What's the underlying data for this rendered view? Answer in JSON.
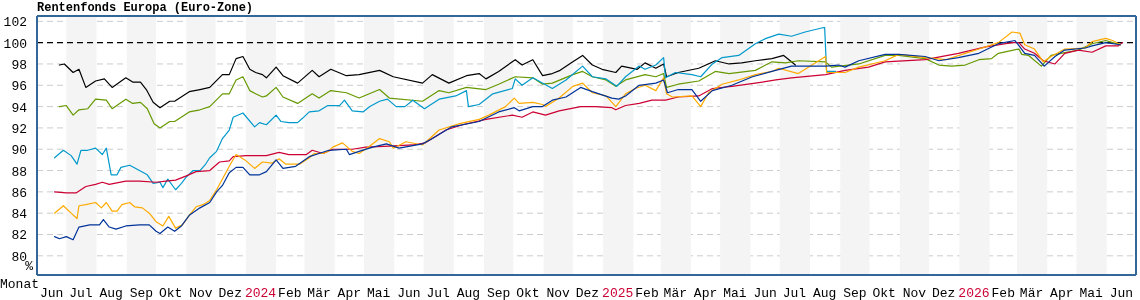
{
  "chart_data": {
    "type": "line",
    "title": "Rentenfonds Europa (Euro-Zone)",
    "xlabel": "Monat",
    "ylabel": "%",
    "xlim": [
      "2023-06-01",
      "2026-07-01"
    ],
    "ylim": [
      78.2,
      102.5
    ],
    "yticks": [
      80,
      82,
      84,
      86,
      88,
      90,
      92,
      94,
      96,
      98,
      100,
      102
    ],
    "xticks": [
      {
        "value": "2023-06-16",
        "label": "Jun"
      },
      {
        "value": "2023-07-16",
        "label": "Jul"
      },
      {
        "value": "2023-08-16",
        "label": "Aug"
      },
      {
        "value": "2023-09-16",
        "label": "Sep"
      },
      {
        "value": "2023-10-16",
        "label": "Okt"
      },
      {
        "value": "2023-11-16",
        "label": "Nov"
      },
      {
        "value": "2023-12-16",
        "label": "Dez"
      },
      {
        "value": "2024-01-16",
        "label": "2024"
      },
      {
        "value": "2024-02-15",
        "label": "Feb"
      },
      {
        "value": "2024-03-16",
        "label": "Mär"
      },
      {
        "value": "2024-04-16",
        "label": "Apr"
      },
      {
        "value": "2024-05-16",
        "label": "Mai"
      },
      {
        "value": "2024-06-16",
        "label": "Jun"
      },
      {
        "value": "2024-07-16",
        "label": "Jul"
      },
      {
        "value": "2024-08-16",
        "label": "Aug"
      },
      {
        "value": "2024-09-16",
        "label": "Sep"
      },
      {
        "value": "2024-10-16",
        "label": "Okt"
      },
      {
        "value": "2024-11-16",
        "label": "Nov"
      },
      {
        "value": "2024-12-16",
        "label": "Dez"
      },
      {
        "value": "2025-01-16",
        "label": "2025"
      },
      {
        "value": "2025-02-15",
        "label": "Feb"
      },
      {
        "value": "2025-03-16",
        "label": "Mär"
      },
      {
        "value": "2025-04-16",
        "label": "Apr"
      },
      {
        "value": "2025-05-16",
        "label": "Mai"
      },
      {
        "value": "2025-06-16",
        "label": "Jun"
      },
      {
        "value": "2025-07-16",
        "label": "Jul"
      },
      {
        "value": "2025-08-16",
        "label": "Aug"
      },
      {
        "value": "2025-09-16",
        "label": "Sep"
      },
      {
        "value": "2025-10-16",
        "label": "Okt"
      },
      {
        "value": "2025-11-16",
        "label": "Nov"
      },
      {
        "value": "2025-12-16",
        "label": "Dez"
      },
      {
        "value": "2026-01-16",
        "label": "2026"
      },
      {
        "value": "2026-02-15",
        "label": "Feb"
      },
      {
        "value": "2026-03-16",
        "label": "Mär"
      },
      {
        "value": "2026-04-16",
        "label": "Apr"
      },
      {
        "value": "2026-05-16",
        "label": "Mai"
      },
      {
        "value": "2026-06-16",
        "label": "Jun"
      }
    ],
    "grid": "y",
    "marker": "none",
    "line_style": "solid",
    "ref_lines": [
      {
        "axis": "y",
        "value": 100,
        "color": "#000000",
        "line_style": "dashed"
      }
    ],
    "bands": [
      {
        "axis": "x",
        "from": "2023-07-01",
        "to": "2023-08-01",
        "color": "#f4f4f4"
      },
      {
        "axis": "x",
        "from": "2023-09-01",
        "to": "2023-10-01",
        "color": "#f4f4f4"
      },
      {
        "axis": "x",
        "from": "2023-11-01",
        "to": "2023-12-01",
        "color": "#f4f4f4"
      },
      {
        "axis": "x",
        "from": "2024-01-01",
        "to": "2024-02-01",
        "color": "#f4f4f4"
      },
      {
        "axis": "x",
        "from": "2024-03-01",
        "to": "2024-04-01",
        "color": "#f4f4f4"
      },
      {
        "axis": "x",
        "from": "2024-05-01",
        "to": "2024-06-01",
        "color": "#f4f4f4"
      },
      {
        "axis": "x",
        "from": "2024-07-01",
        "to": "2024-08-01",
        "color": "#f4f4f4"
      },
      {
        "axis": "x",
        "from": "2024-09-01",
        "to": "2024-10-01",
        "color": "#f4f4f4"
      },
      {
        "axis": "x",
        "from": "2024-11-01",
        "to": "2024-12-01",
        "color": "#f4f4f4"
      },
      {
        "axis": "x",
        "from": "2025-01-01",
        "to": "2025-02-01",
        "color": "#f4f4f4"
      },
      {
        "axis": "x",
        "from": "2025-03-01",
        "to": "2025-04-01",
        "color": "#f4f4f4"
      },
      {
        "axis": "x",
        "from": "2025-05-01",
        "to": "2025-06-01",
        "color": "#f4f4f4"
      },
      {
        "axis": "x",
        "from": "2025-07-01",
        "to": "2025-08-01",
        "color": "#f4f4f4"
      },
      {
        "axis": "x",
        "from": "2025-09-01",
        "to": "2025-10-01",
        "color": "#f4f4f4"
      },
      {
        "axis": "x",
        "from": "2025-11-01",
        "to": "2025-12-01",
        "color": "#f4f4f4"
      },
      {
        "axis": "x",
        "from": "2026-01-01",
        "to": "2026-02-01",
        "color": "#f4f4f4"
      },
      {
        "axis": "x",
        "from": "2026-03-01",
        "to": "2026-04-01",
        "color": "#f4f4f4"
      },
      {
        "axis": "x",
        "from": "2026-05-01",
        "to": "2026-06-01",
        "color": "#f4f4f4"
      }
    ],
    "series": [
      {
        "color": "#000000",
        "x": [
          "2023-06-24",
          "2023-06-29",
          "2023-07-08",
          "2023-07-14",
          "2023-07-21",
          "2023-07-31",
          "2023-08-09",
          "2023-08-17",
          "2023-08-31",
          "2023-09-07",
          "2023-09-15",
          "2023-09-21",
          "2023-09-28",
          "2023-10-05",
          "2023-10-15",
          "2023-10-20",
          "2023-11-04",
          "2023-11-15",
          "2023-11-25",
          "2023-12-08",
          "2023-12-15",
          "2023-12-22",
          "2023-12-29",
          "2024-01-05",
          "2024-01-11",
          "2024-01-18",
          "2024-01-22",
          "2024-02-01",
          "2024-02-08",
          "2024-02-23",
          "2024-03-09",
          "2024-03-16",
          "2024-03-28",
          "2024-04-13",
          "2024-04-26",
          "2024-05-17",
          "2024-05-31",
          "2024-06-30",
          "2024-07-10",
          "2024-07-27",
          "2024-08-14",
          "2024-08-27",
          "2024-09-03",
          "2024-09-16",
          "2024-10-03",
          "2024-10-10",
          "2024-10-21",
          "2024-10-31",
          "2024-11-10",
          "2024-11-18",
          "2024-12-01",
          "2024-12-11",
          "2024-12-21",
          "2024-12-31",
          "2025-01-14",
          "2025-01-20",
          "2025-02-05",
          "2025-02-13",
          "2025-02-24",
          "2025-03-04",
          "2025-03-07",
          "2025-03-19",
          "2025-04-09",
          "2025-04-26",
          "2025-05-10",
          "2025-05-23",
          "2025-06-06",
          "2025-06-23",
          "2025-07-05",
          "2025-07-13",
          "2025-07-17"
        ],
        "values": [
          97.9,
          98.0,
          97.2,
          97.5,
          95.8,
          96.4,
          96.6,
          95.8,
          96.7,
          96.3,
          96.3,
          95.6,
          94.4,
          93.9,
          94.5,
          94.5,
          95.4,
          95.6,
          95.8,
          97.0,
          97.0,
          98.5,
          98.7,
          97.5,
          97.2,
          97.0,
          96.7,
          97.7,
          96.9,
          96.2,
          97.4,
          96.8,
          97.5,
          96.9,
          97.0,
          97.4,
          96.8,
          96.2,
          97.0,
          96.2,
          96.9,
          97.1,
          96.6,
          97.3,
          98.4,
          97.9,
          98.4,
          96.9,
          97.1,
          97.4,
          98.2,
          98.8,
          97.9,
          97.5,
          97.2,
          97.8,
          97.5,
          98.1,
          97.6,
          98.0,
          96.8,
          97.2,
          97.6,
          98.3,
          98.0,
          98.1,
          98.3,
          98.5,
          98.8,
          98.2,
          97.9
        ]
      },
      {
        "color": "#669900",
        "x": [
          "2023-06-24",
          "2023-07-01",
          "2023-07-08",
          "2023-07-14",
          "2023-07-23",
          "2023-07-31",
          "2023-08-11",
          "2023-08-17",
          "2023-08-31",
          "2023-09-07",
          "2023-09-15",
          "2023-09-22",
          "2023-09-29",
          "2023-10-05",
          "2023-10-15",
          "2023-10-20",
          "2023-11-04",
          "2023-11-15",
          "2023-11-25",
          "2023-12-08",
          "2023-12-15",
          "2023-12-22",
          "2023-12-29",
          "2024-01-05",
          "2024-01-11",
          "2024-01-18",
          "2024-01-22",
          "2024-02-01",
          "2024-02-08",
          "2024-02-23",
          "2024-03-09",
          "2024-03-16",
          "2024-03-28",
          "2024-04-13",
          "2024-04-26",
          "2024-05-17",
          "2024-05-27",
          "2024-06-30",
          "2024-07-17",
          "2024-07-27",
          "2024-08-14",
          "2024-09-03",
          "2024-09-16",
          "2024-10-03",
          "2024-10-21",
          "2024-10-31",
          "2024-11-10",
          "2024-12-01",
          "2024-12-11",
          "2024-12-21",
          "2025-01-04",
          "2025-01-14",
          "2025-01-24",
          "2025-02-13",
          "2025-02-24",
          "2025-03-04",
          "2025-03-07",
          "2025-03-19",
          "2025-04-09",
          "2025-04-26",
          "2025-05-10",
          "2025-06-06",
          "2025-06-23",
          "2025-07-07",
          "2025-07-20",
          "2025-08-17",
          "2025-08-23",
          "2025-09-20",
          "2025-10-17",
          "2025-10-31",
          "2025-11-27",
          "2025-12-11",
          "2025-12-24",
          "2026-01-07",
          "2026-01-21",
          "2026-02-03",
          "2026-02-10",
          "2026-03-03",
          "2026-03-06",
          "2026-03-13",
          "2026-03-26",
          "2026-04-05",
          "2026-04-15",
          "2026-05-03",
          "2026-05-17",
          "2026-05-31",
          "2026-06-07",
          "2026-06-15"
        ],
        "values": [
          94.0,
          94.1,
          93.2,
          93.7,
          93.8,
          94.7,
          94.6,
          93.8,
          94.7,
          94.3,
          94.4,
          93.8,
          92.4,
          92.0,
          92.6,
          92.6,
          93.5,
          93.7,
          94.0,
          95.2,
          95.2,
          96.5,
          96.8,
          95.5,
          95.2,
          94.9,
          95.0,
          95.8,
          94.9,
          94.3,
          95.2,
          94.8,
          95.5,
          95.3,
          94.8,
          95.6,
          94.8,
          94.5,
          95.5,
          95.3,
          95.8,
          95.6,
          96.1,
          96.8,
          96.7,
          96.1,
          96.2,
          97.0,
          97.3,
          96.8,
          96.5,
          95.9,
          96.5,
          97.0,
          96.8,
          97.1,
          95.8,
          96.1,
          96.4,
          97.3,
          97.1,
          97.4,
          98.2,
          98.1,
          98.3,
          98.2,
          97.7,
          98.0,
          98.8,
          98.8,
          98.5,
          97.9,
          97.8,
          97.9,
          98.4,
          98.5,
          99.0,
          99.4,
          98.9,
          98.8,
          97.8,
          98.8,
          99.0,
          99.3,
          99.9,
          100.2,
          100.0,
          99.8
        ]
      },
      {
        "color": "#0099cc",
        "x": [
          "2023-06-19",
          "2023-06-28",
          "2023-07-06",
          "2023-07-12",
          "2023-07-16",
          "2023-07-23",
          "2023-07-31",
          "2023-08-07",
          "2023-08-11",
          "2023-08-16",
          "2023-08-22",
          "2023-08-26",
          "2023-09-04",
          "2023-09-14",
          "2023-09-22",
          "2023-09-28",
          "2023-10-05",
          "2023-10-08",
          "2023-10-13",
          "2023-10-21",
          "2023-10-27",
          "2023-11-01",
          "2023-11-08",
          "2023-11-15",
          "2023-11-20",
          "2023-11-25",
          "2023-12-02",
          "2023-12-08",
          "2023-12-15",
          "2023-12-19",
          "2023-12-29",
          "2024-01-10",
          "2024-01-15",
          "2024-01-22",
          "2024-02-01",
          "2024-02-06",
          "2024-02-14",
          "2024-02-23",
          "2024-02-28",
          "2024-03-06",
          "2024-03-16",
          "2024-03-25",
          "2024-04-06",
          "2024-04-11",
          "2024-04-19",
          "2024-04-30",
          "2024-05-07",
          "2024-05-17",
          "2024-05-25",
          "2024-06-03",
          "2024-06-12",
          "2024-06-20",
          "2024-07-02",
          "2024-07-17",
          "2024-08-03",
          "2024-08-14",
          "2024-08-16",
          "2024-08-27",
          "2024-09-10",
          "2024-09-30",
          "2024-10-03",
          "2024-10-10",
          "2024-10-21",
          "2024-11-10",
          "2024-11-24",
          "2024-12-11",
          "2024-12-21",
          "2025-01-04",
          "2025-01-15",
          "2025-01-24",
          "2025-02-07",
          "2025-02-13",
          "2025-02-24",
          "2025-03-04",
          "2025-03-06",
          "2025-03-16",
          "2025-04-02",
          "2025-04-11",
          "2025-04-23",
          "2025-05-03",
          "2025-05-20",
          "2025-06-06",
          "2025-06-17",
          "2025-06-30",
          "2025-07-13",
          "2025-07-27",
          "2025-08-14",
          "2025-08-16",
          "2025-08-18",
          "2025-08-27"
        ],
        "values": [
          89.2,
          89.9,
          89.4,
          88.6,
          89.9,
          89.9,
          90.1,
          89.5,
          90.1,
          87.6,
          87.6,
          88.3,
          88.5,
          88.0,
          87.6,
          86.8,
          86.9,
          86.4,
          87.2,
          86.2,
          86.8,
          87.4,
          88.0,
          88.0,
          88.5,
          89.2,
          89.8,
          91.0,
          91.8,
          93.0,
          93.4,
          92.1,
          92.5,
          92.3,
          93.2,
          92.6,
          92.5,
          92.5,
          92.9,
          93.5,
          93.6,
          94.1,
          94.1,
          94.6,
          93.6,
          93.5,
          94.0,
          94.5,
          94.7,
          94.0,
          94.0,
          94.6,
          93.8,
          94.7,
          95.0,
          95.5,
          94.0,
          94.2,
          95.2,
          95.7,
          96.6,
          96.0,
          96.7,
          95.7,
          96.5,
          97.8,
          96.8,
          96.6,
          95.9,
          96.8,
          97.8,
          97.5,
          97.9,
          98.6,
          96.7,
          97.2,
          97.0,
          96.8,
          98.0,
          98.6,
          98.8,
          99.9,
          100.4,
          100.8,
          100.6,
          101.0,
          101.4,
          101.4,
          97.3,
          97.3
        ]
      },
      {
        "color": "#cc0033",
        "x": [
          "2023-06-19",
          "2023-07-01",
          "2023-07-11",
          "2023-07-21",
          "2023-07-31",
          "2023-08-07",
          "2023-08-14",
          "2023-08-31",
          "2023-09-14",
          "2023-10-01",
          "2023-10-11",
          "2023-10-21",
          "2023-11-01",
          "2023-11-11",
          "2023-11-25",
          "2023-12-05",
          "2023-12-15",
          "2023-12-19",
          "2024-01-01",
          "2024-01-22",
          "2024-02-04",
          "2024-02-14",
          "2024-03-03",
          "2024-03-09",
          "2024-03-20",
          "2024-03-30",
          "2024-04-19",
          "2024-05-03",
          "2024-05-27",
          "2024-06-20",
          "2024-07-03",
          "2024-07-24",
          "2024-08-10",
          "2024-09-03",
          "2024-09-30",
          "2024-10-10",
          "2024-10-21",
          "2024-11-03",
          "2024-11-17",
          "2024-12-09",
          "2024-12-24",
          "2025-01-10",
          "2025-01-14",
          "2025-01-24",
          "2025-02-07",
          "2025-02-20",
          "2025-03-06",
          "2025-03-19",
          "2025-04-09",
          "2025-04-23",
          "2025-05-13",
          "2025-06-06",
          "2025-06-27",
          "2025-07-13",
          "2025-08-17",
          "2025-09-06",
          "2025-09-30",
          "2025-10-17",
          "2025-11-27",
          "2025-12-31",
          "2026-01-28",
          "2026-02-24",
          "2026-03-03",
          "2026-03-09",
          "2026-03-19",
          "2026-03-28",
          "2026-04-09",
          "2026-04-19",
          "2026-05-03",
          "2026-05-17",
          "2026-05-31",
          "2026-06-13",
          "2026-06-17"
        ],
        "values": [
          86.0,
          85.9,
          85.9,
          86.5,
          86.7,
          86.9,
          86.7,
          87.0,
          87.0,
          86.9,
          87.0,
          87.1,
          87.5,
          87.9,
          88.0,
          88.8,
          88.9,
          89.3,
          89.4,
          89.4,
          89.7,
          89.5,
          89.5,
          89.9,
          89.6,
          90.0,
          90.0,
          90.2,
          90.3,
          90.4,
          90.6,
          91.8,
          92.3,
          92.8,
          93.2,
          93.0,
          93.5,
          93.2,
          93.6,
          94.0,
          94.0,
          93.9,
          93.7,
          94.1,
          94.3,
          94.6,
          94.6,
          94.9,
          95.0,
          95.7,
          95.9,
          96.2,
          96.5,
          96.7,
          97.0,
          97.4,
          97.7,
          98.2,
          98.4,
          99.0,
          99.6,
          100.0,
          100.0,
          99.4,
          99.0,
          98.3,
          98.0,
          99.0,
          99.3,
          99.1,
          99.7,
          99.7,
          100.0
        ]
      },
      {
        "color": "#ffaa00",
        "x": [
          "2023-06-19",
          "2023-06-28",
          "2023-07-06",
          "2023-07-12",
          "2023-07-14",
          "2023-07-21",
          "2023-07-31",
          "2023-08-06",
          "2023-08-11",
          "2023-08-17",
          "2023-08-22",
          "2023-08-27",
          "2023-09-04",
          "2023-09-09",
          "2023-09-17",
          "2023-09-24",
          "2023-10-01",
          "2023-10-08",
          "2023-10-14",
          "2023-10-21",
          "2023-10-28",
          "2023-11-04",
          "2023-11-11",
          "2023-11-18",
          "2023-11-25",
          "2023-12-02",
          "2023-12-08",
          "2023-12-15",
          "2023-12-22",
          "2023-12-31",
          "2024-01-10",
          "2024-01-18",
          "2024-01-28",
          "2024-02-04",
          "2024-02-11",
          "2024-02-25",
          "2024-03-06",
          "2024-03-11",
          "2024-03-20",
          "2024-03-25",
          "2024-03-30",
          "2024-04-09",
          "2024-04-19",
          "2024-04-26",
          "2024-05-07",
          "2024-05-17",
          "2024-05-27",
          "2024-05-31",
          "2024-06-13",
          "2024-06-30",
          "2024-07-17",
          "2024-08-07",
          "2024-08-27",
          "2024-09-06",
          "2024-09-23",
          "2024-10-02",
          "2024-10-07",
          "2024-10-21",
          "2024-10-31",
          "2024-11-03",
          "2024-11-17",
          "2024-12-01",
          "2024-12-11",
          "2024-12-21",
          "2025-01-04",
          "2025-01-14",
          "2025-01-24",
          "2025-02-03",
          "2025-02-13",
          "2025-02-24",
          "2025-03-04",
          "2025-03-07",
          "2025-03-13",
          "2025-04-02",
          "2025-04-11",
          "2025-04-19",
          "2025-05-03",
          "2025-05-20",
          "2025-06-06",
          "2025-06-23",
          "2025-06-30",
          "2025-07-20",
          "2025-08-17",
          "2025-08-18",
          "2025-09-06",
          "2025-09-20",
          "2025-10-17",
          "2025-10-31",
          "2025-11-27",
          "2025-12-18",
          "2026-01-07",
          "2026-01-21",
          "2026-02-10",
          "2026-02-24",
          "2026-03-04",
          "2026-03-09",
          "2026-03-19",
          "2026-03-28",
          "2026-04-05",
          "2026-04-19",
          "2026-05-10",
          "2026-05-17",
          "2026-05-31",
          "2026-06-07",
          "2026-06-15"
        ],
        "values": [
          84.0,
          84.7,
          84.0,
          83.5,
          84.7,
          84.8,
          85.0,
          84.5,
          85.0,
          84.2,
          84.2,
          84.8,
          85.0,
          84.6,
          84.5,
          84.0,
          83.2,
          82.8,
          83.7,
          82.6,
          82.9,
          83.8,
          84.6,
          84.8,
          85.2,
          86.2,
          87.2,
          88.4,
          89.5,
          89.0,
          88.2,
          88.8,
          88.7,
          89.1,
          88.6,
          88.6,
          89.2,
          89.6,
          89.6,
          89.8,
          90.2,
          90.6,
          89.8,
          89.6,
          90.3,
          91.0,
          90.7,
          90.1,
          90.7,
          90.4,
          91.8,
          92.4,
          92.8,
          93.2,
          94.0,
          94.8,
          94.3,
          94.4,
          94.2,
          94.0,
          94.8,
          95.9,
          96.2,
          95.3,
          95.0,
          94.0,
          95.2,
          95.7,
          96.0,
          95.5,
          96.7,
          95.2,
          94.9,
          95.0,
          94.0,
          95.3,
          96.1,
          96.5,
          97.0,
          97.3,
          97.6,
          97.1,
          98.7,
          97.2,
          97.2,
          97.7,
          98.3,
          98.9,
          98.6,
          98.4,
          99.0,
          99.4,
          100.0,
          101.0,
          100.9,
          99.8,
          99.4,
          98.2,
          98.7,
          99.4,
          99.5,
          100.1,
          100.4,
          100.2,
          99.8
        ]
      },
      {
        "color": "#003399",
        "x": [
          "2023-06-19",
          "2023-06-24",
          "2023-07-01",
          "2023-07-08",
          "2023-07-14",
          "2023-07-25",
          "2023-08-04",
          "2023-08-08",
          "2023-08-14",
          "2023-08-21",
          "2023-08-31",
          "2023-09-14",
          "2023-09-24",
          "2023-10-01",
          "2023-10-05",
          "2023-10-13",
          "2023-10-20",
          "2023-10-27",
          "2023-11-04",
          "2023-11-15",
          "2023-11-25",
          "2023-12-02",
          "2023-12-08",
          "2023-12-15",
          "2023-12-22",
          "2023-12-29",
          "2024-01-05",
          "2024-01-15",
          "2024-01-22",
          "2024-02-01",
          "2024-02-08",
          "2024-02-21",
          "2024-03-06",
          "2024-03-16",
          "2024-03-26",
          "2024-04-13",
          "2024-04-16",
          "2024-04-26",
          "2024-05-10",
          "2024-05-24",
          "2024-06-06",
          "2024-06-30",
          "2024-07-10",
          "2024-07-30",
          "2024-08-27",
          "2024-09-16",
          "2024-10-02",
          "2024-10-07",
          "2024-10-21",
          "2024-10-31",
          "2024-11-10",
          "2024-11-24",
          "2024-12-09",
          "2024-12-21",
          "2025-01-10",
          "2025-01-17",
          "2025-01-24",
          "2025-02-07",
          "2025-02-24",
          "2025-03-04",
          "2025-03-08",
          "2025-03-19",
          "2025-04-02",
          "2025-04-11",
          "2025-04-23",
          "2025-05-13",
          "2025-06-03",
          "2025-06-23",
          "2025-07-13",
          "2025-07-27",
          "2025-08-17",
          "2025-08-30",
          "2025-09-06",
          "2025-09-20",
          "2025-10-17",
          "2025-10-31",
          "2025-11-27",
          "2025-12-11",
          "2025-12-31",
          "2026-01-21",
          "2026-02-10",
          "2026-02-27",
          "2026-03-09",
          "2026-03-19",
          "2026-03-29",
          "2026-04-09",
          "2026-04-19",
          "2026-05-10",
          "2026-05-17",
          "2026-05-31",
          "2026-06-15"
        ],
        "values": [
          81.8,
          81.6,
          81.8,
          81.5,
          82.7,
          82.9,
          82.9,
          83.4,
          82.7,
          82.5,
          82.8,
          82.9,
          82.9,
          82.3,
          82.1,
          82.7,
          82.3,
          82.8,
          83.8,
          84.5,
          85.0,
          86.0,
          86.6,
          87.8,
          88.3,
          88.3,
          87.6,
          87.6,
          87.9,
          89.0,
          88.2,
          88.4,
          89.3,
          89.6,
          89.9,
          90.0,
          89.5,
          89.8,
          90.2,
          90.5,
          90.1,
          90.5,
          91.0,
          92.1,
          92.6,
          93.5,
          93.9,
          93.6,
          94.0,
          94.0,
          94.6,
          94.9,
          95.8,
          95.4,
          94.8,
          94.7,
          95.0,
          96.0,
          96.2,
          96.5,
          95.3,
          95.6,
          95.6,
          94.5,
          95.5,
          96.0,
          96.8,
          97.3,
          97.8,
          97.8,
          97.8,
          97.9,
          97.7,
          98.3,
          98.9,
          98.9,
          98.7,
          98.3,
          98.6,
          99.0,
          99.9,
          100.2,
          99.0,
          98.8,
          97.8,
          98.7,
          99.3,
          99.5,
          99.7,
          100.0,
          99.8
        ]
      }
    ]
  }
}
